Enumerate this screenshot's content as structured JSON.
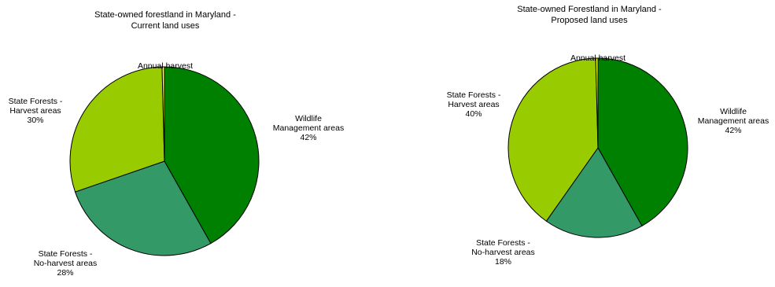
{
  "chart_data": [
    {
      "type": "pie",
      "title": "State-owned forestland in Maryland -\nCurrent land uses",
      "slices": [
        {
          "label": "Wildlife\nManagement areas",
          "value": 42,
          "percent_label": "42%",
          "color": "#008000"
        },
        {
          "label": "State Forests -\nNo-harvest areas",
          "value": 28,
          "percent_label": "28%",
          "color": "#339966"
        },
        {
          "label": "State Forests -\nHarvest areas",
          "value": 30,
          "percent_label": "30%",
          "color": "#99cc00"
        },
        {
          "label": "Annual harvest",
          "value": 0.4,
          "percent_label": "",
          "color": "#ffff00"
        }
      ]
    },
    {
      "type": "pie",
      "title": "State-owned Forestland in Maryland -\nProposed land uses",
      "slices": [
        {
          "label": "Wildlife\nManagement areas",
          "value": 42,
          "percent_label": "42%",
          "color": "#008000"
        },
        {
          "label": "State Forests -\nNo-harvest areas",
          "value": 18,
          "percent_label": "18%",
          "color": "#339966"
        },
        {
          "label": "State Forests -\nHarvest areas",
          "value": 40,
          "percent_label": "40%",
          "color": "#99cc00"
        },
        {
          "label": "Annual harvest",
          "value": 0.4,
          "percent_label": "",
          "color": "#ffff00"
        }
      ]
    }
  ]
}
